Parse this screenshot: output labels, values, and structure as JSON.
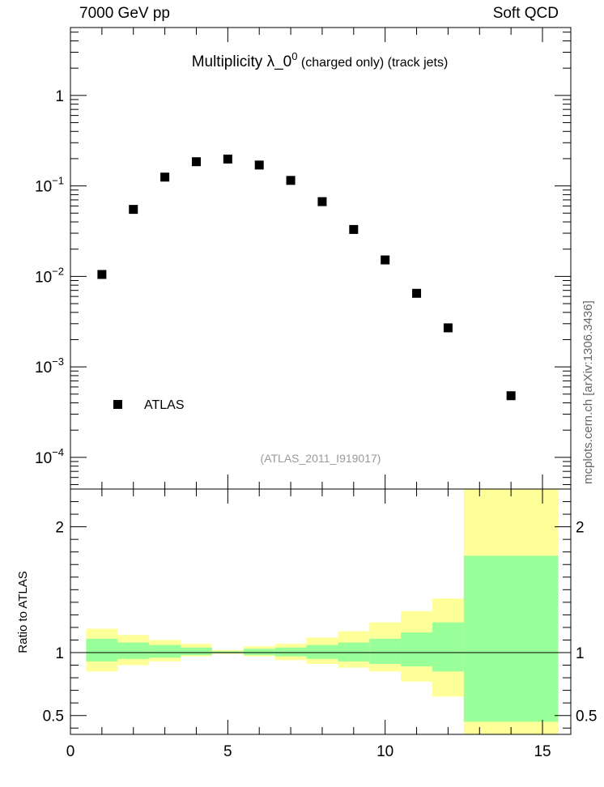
{
  "header": {
    "energy_label": "7000 GeV pp",
    "process_label": "Soft QCD",
    "side_note": "mcplots.cern.ch [arXiv:1306.3436]"
  },
  "chart_data": [
    {
      "type": "scatter",
      "title_main": "Multiplicity  λ_0",
      "title_sup": "0",
      "title_suffix": " (charged only) (track jets)",
      "analysis_label": "(ATLAS_2011_I919017)",
      "y_scale": "log",
      "xlim": [
        0,
        15.9
      ],
      "ylim_log10": [
        -4.35,
        0.75
      ],
      "y_ticks": [
        {
          "exp": 0,
          "label": "1"
        },
        {
          "exp": -1,
          "label": "10"
        },
        {
          "exp": -2,
          "label": "10"
        },
        {
          "exp": -3,
          "label": "10"
        },
        {
          "exp": -4,
          "label": "10"
        }
      ],
      "y_tick_sups": [
        "",
        "−1",
        "−2",
        "−3",
        "−4"
      ],
      "legend": {
        "position": "lower-left",
        "entries": [
          "ATLAS"
        ]
      },
      "series": [
        {
          "name": "ATLAS",
          "marker": "square",
          "color": "#000000",
          "x": [
            1,
            2,
            3,
            4,
            5,
            6,
            7,
            8,
            9,
            10,
            11,
            12,
            14
          ],
          "y": [
            0.0105,
            0.055,
            0.125,
            0.185,
            0.198,
            0.17,
            0.115,
            0.067,
            0.033,
            0.0152,
            0.0065,
            0.0027,
            0.00048
          ]
        }
      ]
    },
    {
      "type": "area",
      "ylabel": "Ratio to ATLAS",
      "xlim": [
        0,
        15.9
      ],
      "ylim": [
        0.35,
        2.3
      ],
      "x_ticks": [
        0,
        5,
        10,
        15
      ],
      "x_tick_labels": [
        "0",
        "5",
        "10",
        "15"
      ],
      "y_ticks": [
        0.5,
        1,
        2
      ],
      "y_tick_labels": [
        "0.5",
        "1",
        "2"
      ],
      "reference_line": 1,
      "colors": {
        "inner_band": "#99ff99",
        "outer_band": "#ffff99"
      },
      "bins": [
        {
          "lo": 0.5,
          "hi": 1.5,
          "stat_lo": 0.93,
          "stat_hi": 1.11,
          "tot_lo": 0.85,
          "tot_hi": 1.19
        },
        {
          "lo": 1.5,
          "hi": 2.5,
          "stat_lo": 0.95,
          "stat_hi": 1.08,
          "tot_lo": 0.9,
          "tot_hi": 1.14
        },
        {
          "lo": 2.5,
          "hi": 3.5,
          "stat_lo": 0.96,
          "stat_hi": 1.06,
          "tot_lo": 0.93,
          "tot_hi": 1.1
        },
        {
          "lo": 3.5,
          "hi": 4.5,
          "stat_lo": 0.98,
          "stat_hi": 1.04,
          "tot_lo": 0.97,
          "tot_hi": 1.07
        },
        {
          "lo": 4.5,
          "hi": 5.5,
          "stat_lo": 0.995,
          "stat_hi": 1.01,
          "tot_lo": 0.99,
          "tot_hi": 1.02
        },
        {
          "lo": 5.5,
          "hi": 6.5,
          "stat_lo": 0.98,
          "stat_hi": 1.03,
          "tot_lo": 0.97,
          "tot_hi": 1.05
        },
        {
          "lo": 6.5,
          "hi": 7.5,
          "stat_lo": 0.97,
          "stat_hi": 1.04,
          "tot_lo": 0.94,
          "tot_hi": 1.07
        },
        {
          "lo": 7.5,
          "hi": 8.5,
          "stat_lo": 0.95,
          "stat_hi": 1.06,
          "tot_lo": 0.91,
          "tot_hi": 1.12
        },
        {
          "lo": 8.5,
          "hi": 9.5,
          "stat_lo": 0.93,
          "stat_hi": 1.08,
          "tot_lo": 0.88,
          "tot_hi": 1.17
        },
        {
          "lo": 9.5,
          "hi": 10.5,
          "stat_lo": 0.91,
          "stat_hi": 1.11,
          "tot_lo": 0.85,
          "tot_hi": 1.24
        },
        {
          "lo": 10.5,
          "hi": 11.5,
          "stat_lo": 0.89,
          "stat_hi": 1.16,
          "tot_lo": 0.77,
          "tot_hi": 1.33
        },
        {
          "lo": 11.5,
          "hi": 12.5,
          "stat_lo": 0.85,
          "stat_hi": 1.24,
          "tot_lo": 0.65,
          "tot_hi": 1.43
        },
        {
          "lo": 12.5,
          "hi": 15.5,
          "stat_lo": 0.45,
          "stat_hi": 1.77,
          "tot_lo": 0.35,
          "tot_hi": 2.3
        }
      ]
    }
  ]
}
